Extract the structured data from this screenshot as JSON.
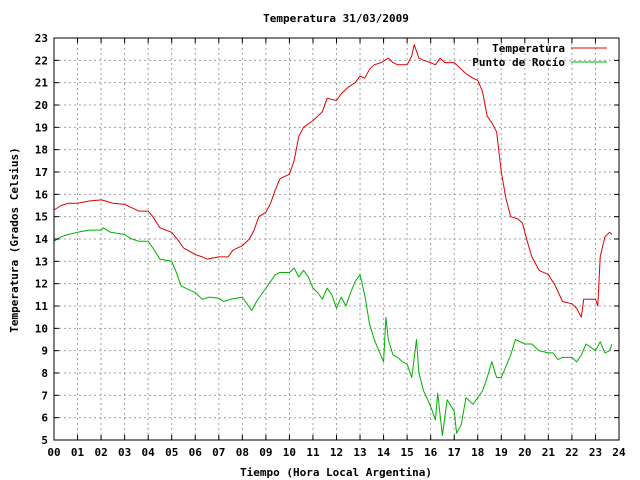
{
  "chart_data": {
    "type": "line",
    "title": "Temperatura 31/03/2009",
    "xlabel": "Tiempo (Hora Local Argentina)",
    "ylabel": "Temperatura (Grados Celsius)",
    "xlim": [
      0,
      24
    ],
    "ylim": [
      5,
      23
    ],
    "grid": true,
    "legend_position": "top-right",
    "x_ticks": [
      {
        "value": 0,
        "label": "00"
      },
      {
        "value": 1,
        "label": "01"
      },
      {
        "value": 2,
        "label": "02"
      },
      {
        "value": 3,
        "label": "03"
      },
      {
        "value": 4,
        "label": "04"
      },
      {
        "value": 5,
        "label": "05"
      },
      {
        "value": 6,
        "label": "06"
      },
      {
        "value": 7,
        "label": "07"
      },
      {
        "value": 8,
        "label": "08"
      },
      {
        "value": 9,
        "label": "09"
      },
      {
        "value": 10,
        "label": "10"
      },
      {
        "value": 11,
        "label": "11"
      },
      {
        "value": 12,
        "label": "12"
      },
      {
        "value": 13,
        "label": "13"
      },
      {
        "value": 14,
        "label": "14"
      },
      {
        "value": 15,
        "label": "15"
      },
      {
        "value": 16,
        "label": "16"
      },
      {
        "value": 17,
        "label": "17"
      },
      {
        "value": 18,
        "label": "18"
      },
      {
        "value": 19,
        "label": "19"
      },
      {
        "value": 20,
        "label": "20"
      },
      {
        "value": 21,
        "label": "21"
      },
      {
        "value": 22,
        "label": "22"
      },
      {
        "value": 23,
        "label": "23"
      },
      {
        "value": 24,
        "label": "24"
      }
    ],
    "y_ticks": [
      {
        "value": 5,
        "label": "5"
      },
      {
        "value": 6,
        "label": "6"
      },
      {
        "value": 7,
        "label": "7"
      },
      {
        "value": 8,
        "label": "8"
      },
      {
        "value": 9,
        "label": "9"
      },
      {
        "value": 10,
        "label": "10"
      },
      {
        "value": 11,
        "label": "11"
      },
      {
        "value": 12,
        "label": "12"
      },
      {
        "value": 13,
        "label": "13"
      },
      {
        "value": 14,
        "label": "14"
      },
      {
        "value": 15,
        "label": "15"
      },
      {
        "value": 16,
        "label": "16"
      },
      {
        "value": 17,
        "label": "17"
      },
      {
        "value": 18,
        "label": "18"
      },
      {
        "value": 19,
        "label": "19"
      },
      {
        "value": 20,
        "label": "20"
      },
      {
        "value": 21,
        "label": "21"
      },
      {
        "value": 22,
        "label": "22"
      },
      {
        "value": 23,
        "label": "23"
      }
    ],
    "series": [
      {
        "name": "Temperatura",
        "color": "#e00000",
        "points": [
          [
            0.0,
            15.3
          ],
          [
            0.3,
            15.5
          ],
          [
            0.6,
            15.6
          ],
          [
            1.0,
            15.6
          ],
          [
            1.5,
            15.7
          ],
          [
            2.0,
            15.75
          ],
          [
            2.2,
            15.7
          ],
          [
            2.5,
            15.6
          ],
          [
            3.0,
            15.55
          ],
          [
            3.3,
            15.4
          ],
          [
            3.6,
            15.25
          ],
          [
            4.0,
            15.25
          ],
          [
            4.2,
            15.0
          ],
          [
            4.5,
            14.5
          ],
          [
            5.0,
            14.3
          ],
          [
            5.3,
            13.9
          ],
          [
            5.5,
            13.6
          ],
          [
            6.0,
            13.3
          ],
          [
            6.3,
            13.2
          ],
          [
            6.5,
            13.1
          ],
          [
            7.0,
            13.2
          ],
          [
            7.4,
            13.2
          ],
          [
            7.6,
            13.5
          ],
          [
            8.0,
            13.7
          ],
          [
            8.3,
            14.0
          ],
          [
            8.5,
            14.4
          ],
          [
            8.7,
            15.0
          ],
          [
            9.0,
            15.2
          ],
          [
            9.2,
            15.6
          ],
          [
            9.4,
            16.2
          ],
          [
            9.6,
            16.7
          ],
          [
            10.0,
            16.9
          ],
          [
            10.2,
            17.5
          ],
          [
            10.4,
            18.6
          ],
          [
            10.6,
            19.0
          ],
          [
            11.0,
            19.3
          ],
          [
            11.2,
            19.5
          ],
          [
            11.4,
            19.7
          ],
          [
            11.6,
            20.3
          ],
          [
            12.0,
            20.2
          ],
          [
            12.2,
            20.5
          ],
          [
            12.5,
            20.8
          ],
          [
            12.8,
            21.0
          ],
          [
            13.0,
            21.3
          ],
          [
            13.2,
            21.2
          ],
          [
            13.4,
            21.6
          ],
          [
            13.6,
            21.8
          ],
          [
            13.9,
            21.9
          ],
          [
            14.2,
            22.1
          ],
          [
            14.4,
            21.9
          ],
          [
            14.6,
            21.8
          ],
          [
            15.0,
            21.8
          ],
          [
            15.2,
            22.2
          ],
          [
            15.3,
            22.7
          ],
          [
            15.5,
            22.1
          ],
          [
            15.7,
            22.0
          ],
          [
            16.0,
            21.9
          ],
          [
            16.2,
            21.8
          ],
          [
            16.4,
            22.1
          ],
          [
            16.6,
            21.9
          ],
          [
            17.0,
            21.9
          ],
          [
            17.2,
            21.7
          ],
          [
            17.5,
            21.4
          ],
          [
            17.8,
            21.2
          ],
          [
            18.0,
            21.1
          ],
          [
            18.2,
            20.6
          ],
          [
            18.4,
            19.5
          ],
          [
            18.6,
            19.2
          ],
          [
            18.8,
            18.8
          ],
          [
            19.0,
            17.0
          ],
          [
            19.2,
            15.8
          ],
          [
            19.4,
            15.0
          ],
          [
            19.7,
            14.9
          ],
          [
            19.9,
            14.7
          ],
          [
            20.1,
            13.9
          ],
          [
            20.3,
            13.2
          ],
          [
            20.6,
            12.6
          ],
          [
            21.0,
            12.4
          ],
          [
            21.3,
            11.9
          ],
          [
            21.6,
            11.2
          ],
          [
            22.0,
            11.1
          ],
          [
            22.2,
            10.9
          ],
          [
            22.4,
            10.5
          ],
          [
            22.5,
            11.3
          ],
          [
            23.0,
            11.3
          ],
          [
            23.1,
            11.0
          ],
          [
            23.2,
            13.2
          ],
          [
            23.4,
            14.1
          ],
          [
            23.6,
            14.3
          ],
          [
            23.7,
            14.2
          ]
        ]
      },
      {
        "name": "Punto de Rocío",
        "color": "#00b000",
        "points": [
          [
            0.0,
            13.9
          ],
          [
            0.3,
            14.1
          ],
          [
            0.6,
            14.2
          ],
          [
            1.0,
            14.3
          ],
          [
            1.5,
            14.4
          ],
          [
            2.0,
            14.4
          ],
          [
            2.1,
            14.5
          ],
          [
            2.4,
            14.3
          ],
          [
            3.0,
            14.2
          ],
          [
            3.3,
            14.0
          ],
          [
            3.6,
            13.9
          ],
          [
            4.0,
            13.9
          ],
          [
            4.2,
            13.6
          ],
          [
            4.5,
            13.1
          ],
          [
            5.0,
            13.0
          ],
          [
            5.2,
            12.5
          ],
          [
            5.4,
            11.9
          ],
          [
            5.8,
            11.7
          ],
          [
            6.0,
            11.6
          ],
          [
            6.3,
            11.3
          ],
          [
            6.6,
            11.4
          ],
          [
            7.0,
            11.35
          ],
          [
            7.2,
            11.2
          ],
          [
            7.5,
            11.3
          ],
          [
            8.0,
            11.4
          ],
          [
            8.2,
            11.1
          ],
          [
            8.4,
            10.8
          ],
          [
            8.6,
            11.2
          ],
          [
            9.0,
            11.8
          ],
          [
            9.2,
            12.1
          ],
          [
            9.4,
            12.4
          ],
          [
            9.6,
            12.5
          ],
          [
            10.0,
            12.5
          ],
          [
            10.2,
            12.7
          ],
          [
            10.4,
            12.3
          ],
          [
            10.6,
            12.6
          ],
          [
            10.8,
            12.3
          ],
          [
            11.0,
            11.8
          ],
          [
            11.2,
            11.6
          ],
          [
            11.4,
            11.3
          ],
          [
            11.6,
            11.8
          ],
          [
            11.8,
            11.5
          ],
          [
            12.0,
            10.9
          ],
          [
            12.2,
            11.4
          ],
          [
            12.4,
            11.0
          ],
          [
            12.6,
            11.6
          ],
          [
            12.8,
            12.1
          ],
          [
            13.0,
            12.4
          ],
          [
            13.2,
            11.5
          ],
          [
            13.4,
            10.2
          ],
          [
            13.6,
            9.5
          ],
          [
            13.8,
            9.0
          ],
          [
            14.0,
            8.5
          ],
          [
            14.1,
            10.5
          ],
          [
            14.2,
            9.5
          ],
          [
            14.4,
            8.8
          ],
          [
            14.6,
            8.7
          ],
          [
            14.8,
            8.5
          ],
          [
            15.0,
            8.4
          ],
          [
            15.2,
            7.8
          ],
          [
            15.4,
            9.5
          ],
          [
            15.5,
            8.0
          ],
          [
            15.7,
            7.2
          ],
          [
            16.0,
            6.5
          ],
          [
            16.2,
            5.9
          ],
          [
            16.3,
            7.1
          ],
          [
            16.5,
            5.2
          ],
          [
            16.7,
            6.8
          ],
          [
            17.0,
            6.3
          ],
          [
            17.1,
            5.3
          ],
          [
            17.3,
            5.7
          ],
          [
            17.5,
            6.9
          ],
          [
            17.8,
            6.6
          ],
          [
            18.0,
            6.9
          ],
          [
            18.2,
            7.2
          ],
          [
            18.4,
            7.8
          ],
          [
            18.6,
            8.5
          ],
          [
            18.8,
            7.8
          ],
          [
            19.0,
            7.8
          ],
          [
            19.2,
            8.3
          ],
          [
            19.4,
            8.8
          ],
          [
            19.6,
            9.5
          ],
          [
            20.0,
            9.3
          ],
          [
            20.3,
            9.3
          ],
          [
            20.6,
            9.0
          ],
          [
            21.0,
            8.9
          ],
          [
            21.2,
            8.9
          ],
          [
            21.4,
            8.6
          ],
          [
            21.6,
            8.7
          ],
          [
            22.0,
            8.7
          ],
          [
            22.2,
            8.5
          ],
          [
            22.4,
            8.8
          ],
          [
            22.6,
            9.3
          ],
          [
            23.0,
            9.0
          ],
          [
            23.2,
            9.4
          ],
          [
            23.4,
            8.9
          ],
          [
            23.6,
            9.0
          ],
          [
            23.7,
            9.3
          ]
        ]
      }
    ]
  }
}
